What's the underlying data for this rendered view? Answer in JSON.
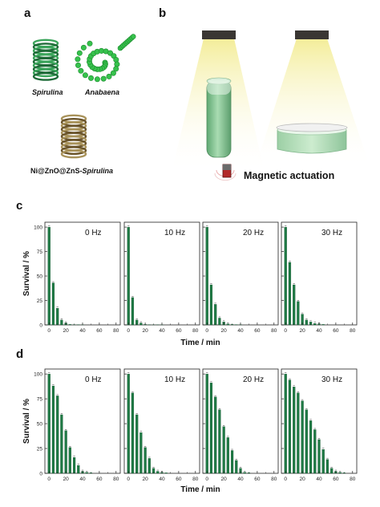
{
  "panels": {
    "a": "a",
    "b": "b",
    "c": "c",
    "d": "d"
  },
  "panel_a": {
    "label_spirulina": "Spirulina",
    "label_anabaena": "Anabaena",
    "label_composite_prefix": "Ni@ZnO@ZnS-",
    "label_composite_italic": "Spirulina"
  },
  "panel_b": {
    "actuation_label": "Magnetic actuation"
  },
  "colors": {
    "bar": "#1f7a45",
    "bar_edge": "#0f4d2a",
    "coil_green": "#2f8a4a",
    "coil_bright": "#36c24c",
    "coil_gold": "#8c7440",
    "lamp": "#3a3633",
    "light": "#f6f0a8",
    "vial": "#8fc89a"
  },
  "chart_data": [
    {
      "panel": "c",
      "type": "bar",
      "ylabel": "Survival / %",
      "xlabel": "Time / min",
      "xlim": [
        -5,
        85
      ],
      "ylim": [
        0,
        105
      ],
      "xticks": [
        0,
        20,
        40,
        60,
        80
      ],
      "yticks": [
        0,
        25,
        50,
        75,
        100
      ],
      "x": [
        0,
        5,
        10,
        15,
        20,
        25,
        30,
        35,
        40,
        45,
        50,
        55,
        60,
        65,
        70,
        75,
        80
      ],
      "series": [
        {
          "name": "0 Hz",
          "values": [
            100,
            43,
            17,
            5,
            2,
            0.5,
            0.3,
            0.2,
            0.1,
            0,
            0,
            0,
            0,
            0,
            0,
            0,
            0
          ]
        },
        {
          "name": "10 Hz",
          "values": [
            100,
            28,
            5,
            2,
            0.5,
            0.2,
            0.1,
            0.1,
            0.1,
            0,
            0,
            0,
            0,
            0,
            0,
            0,
            0
          ]
        },
        {
          "name": "20 Hz",
          "values": [
            100,
            41,
            21,
            7,
            3,
            1,
            0.5,
            0.3,
            0.2,
            0,
            0,
            0,
            0,
            0,
            0,
            0,
            0
          ]
        },
        {
          "name": "30 Hz",
          "values": [
            100,
            64,
            41,
            24,
            11,
            5,
            3,
            1.5,
            1,
            0.5,
            0,
            0,
            0,
            0,
            0,
            0,
            0
          ]
        }
      ]
    },
    {
      "panel": "d",
      "type": "bar",
      "ylabel": "Survival / %",
      "xlabel": "Time / min",
      "xlim": [
        -5,
        85
      ],
      "ylim": [
        0,
        105
      ],
      "xticks": [
        0,
        20,
        40,
        60,
        80
      ],
      "yticks": [
        0,
        25,
        50,
        75,
        100
      ],
      "x": [
        0,
        5,
        10,
        15,
        20,
        25,
        30,
        35,
        40,
        45,
        50,
        55,
        60,
        65,
        70,
        75,
        80
      ],
      "series": [
        {
          "name": "0 Hz",
          "values": [
            100,
            88,
            78,
            59,
            43,
            26,
            16,
            8,
            2,
            1,
            0.5,
            0,
            0,
            0,
            0,
            0,
            0
          ]
        },
        {
          "name": "10 Hz",
          "values": [
            100,
            81,
            59,
            41,
            26,
            15,
            5,
            2,
            1,
            0.5,
            0,
            0,
            0,
            0,
            0,
            0,
            0
          ]
        },
        {
          "name": "20 Hz",
          "values": [
            100,
            91,
            77,
            64,
            47,
            36,
            23,
            13,
            5,
            1,
            0.5,
            0,
            0,
            0,
            0,
            0,
            0
          ]
        },
        {
          "name": "30 Hz",
          "values": [
            100,
            94,
            87,
            81,
            73,
            64,
            53,
            44,
            34,
            24,
            14,
            5,
            2,
            1,
            0.5,
            0,
            0
          ]
        }
      ]
    }
  ]
}
